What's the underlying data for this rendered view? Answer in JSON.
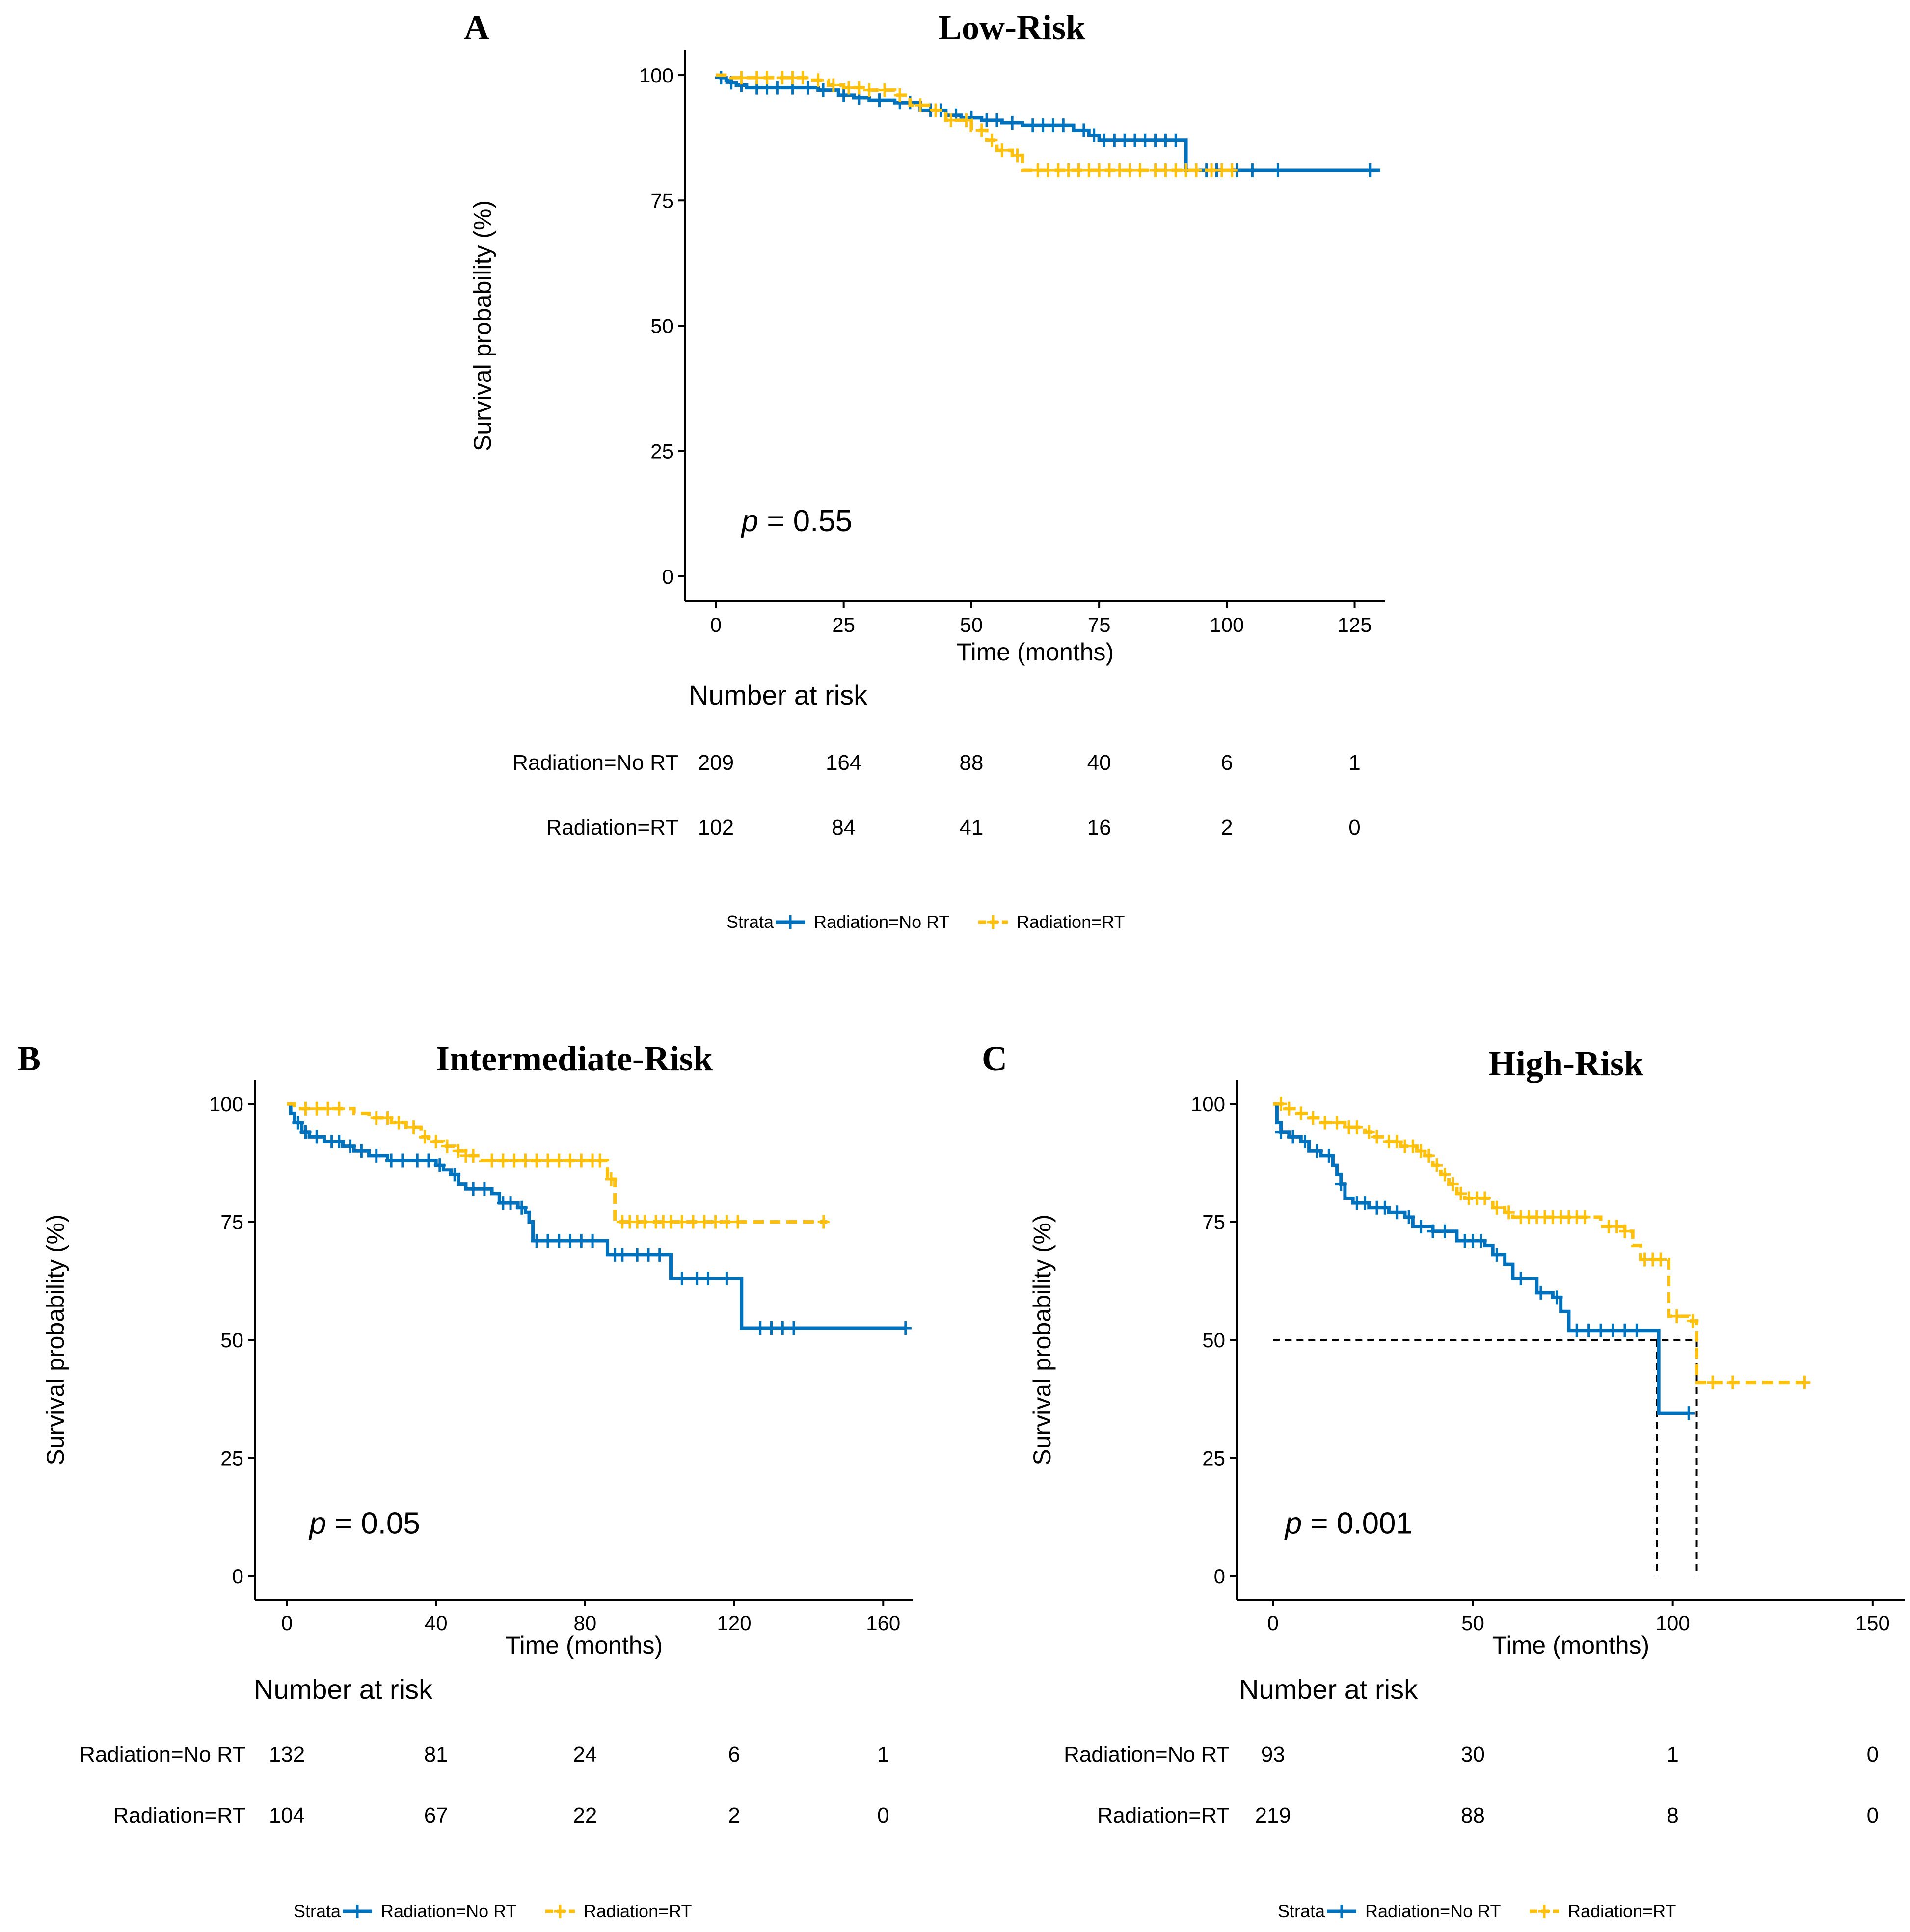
{
  "colors": {
    "no_rt": "#0072BD",
    "rt": "#FDC00F",
    "axis": "#000000",
    "median": "#000000"
  },
  "chart_data": [
    {
      "id": "A",
      "type": "line",
      "panel_label": "A",
      "title": "Low-Risk",
      "ylabel": "Survival probability (%)",
      "xlabel": "Time (months)",
      "xlim": [
        -6,
        131
      ],
      "ylim": [
        -5,
        105
      ],
      "xticks": [
        "0",
        "25",
        "50",
        "75",
        "100",
        "125"
      ],
      "xtick_values": [
        0,
        25,
        50,
        75,
        100,
        125
      ],
      "yticks": [
        "0",
        "25",
        "50",
        "75",
        "100"
      ],
      "ytick_values": [
        0,
        25,
        50,
        75,
        100
      ],
      "pvalue_label": "p",
      "pvalue_text": " = 0.55",
      "pvalue_pos": [
        5,
        9
      ],
      "median_lines": [],
      "series": [
        {
          "name": "Radiation=No RT",
          "key": "no_rt",
          "dashed": false,
          "steps": [
            [
              0,
              100
            ],
            [
              1,
              99.5
            ],
            [
              2,
              99
            ],
            [
              3,
              98.5
            ],
            [
              4,
              98
            ],
            [
              6,
              97.5
            ],
            [
              20,
              97
            ],
            [
              24,
              96
            ],
            [
              27,
              95.5
            ],
            [
              30,
              95
            ],
            [
              35,
              94.5
            ],
            [
              40,
              93
            ],
            [
              45,
              92
            ],
            [
              48,
              91.5
            ],
            [
              52,
              91
            ],
            [
              56,
              90.5
            ],
            [
              60,
              90
            ],
            [
              70,
              89
            ],
            [
              73,
              88
            ],
            [
              75,
              87
            ],
            [
              85,
              87
            ],
            [
              92,
              81
            ],
            [
              130,
              81
            ]
          ],
          "end": 130,
          "censor": [
            1,
            3,
            5,
            8,
            10,
            12,
            15,
            18,
            21,
            25,
            28,
            32,
            36,
            38,
            42,
            44,
            47,
            50,
            53,
            55,
            58,
            62,
            64,
            66,
            68,
            72,
            74,
            76,
            78,
            80,
            82,
            84,
            86,
            88,
            90,
            94,
            96,
            98,
            102,
            105,
            110,
            128
          ]
        },
        {
          "name": "Radiation=RT",
          "key": "rt",
          "dashed": true,
          "steps": [
            [
              0,
              100
            ],
            [
              3,
              99.5
            ],
            [
              18,
              99
            ],
            [
              22,
              98
            ],
            [
              25,
              97.5
            ],
            [
              30,
              97
            ],
            [
              35,
              96
            ],
            [
              38,
              94
            ],
            [
              42,
              93
            ],
            [
              45,
              91
            ],
            [
              50,
              89
            ],
            [
              53,
              87
            ],
            [
              55,
              85
            ],
            [
              58,
              84
            ],
            [
              60,
              81
            ],
            [
              102,
              81
            ]
          ],
          "end": 102,
          "censor": [
            5,
            8,
            10,
            13,
            15,
            17,
            20,
            23,
            26,
            28,
            30,
            33,
            36,
            40,
            43,
            46,
            49,
            52,
            54,
            56,
            59,
            63,
            65,
            67,
            69,
            71,
            73,
            75,
            77,
            79,
            81,
            83,
            86,
            88,
            90,
            92,
            94,
            97,
            99,
            101
          ]
        }
      ],
      "risk_table": {
        "title": "Number at risk",
        "rows": [
          {
            "label": "Radiation=No RT",
            "values": [
              "209",
              "164",
              "88",
              "40",
              "6",
              "1"
            ]
          },
          {
            "label": "Radiation=RT",
            "values": [
              "102",
              "84",
              "41",
              "16",
              "2",
              "0"
            ]
          }
        ]
      },
      "legend": {
        "title": "Strata",
        "items": [
          "Radiation=No RT",
          "Radiation=RT"
        ],
        "position": "bottom"
      }
    },
    {
      "id": "B",
      "type": "line",
      "panel_label": "B",
      "title": "Intermediate-Risk",
      "ylabel": "Survival probability (%)",
      "xlabel": "Time (months)",
      "xlim": [
        -8.5,
        168
      ],
      "ylim": [
        -5,
        105
      ],
      "xticks": [
        "0",
        "40",
        "80",
        "120",
        "160"
      ],
      "xtick_values": [
        0,
        40,
        80,
        120,
        160
      ],
      "yticks": [
        "0",
        "25",
        "50",
        "75",
        "100"
      ],
      "ytick_values": [
        0,
        25,
        50,
        75,
        100
      ],
      "pvalue_label": "p",
      "pvalue_text": " = 0.05",
      "pvalue_pos": [
        6,
        9
      ],
      "median_lines": [],
      "series": [
        {
          "name": "Radiation=No RT",
          "key": "no_rt",
          "dashed": false,
          "steps": [
            [
              0,
              100
            ],
            [
              1,
              98
            ],
            [
              2,
              96
            ],
            [
              4,
              94
            ],
            [
              6,
              93
            ],
            [
              10,
              92
            ],
            [
              15,
              91
            ],
            [
              18,
              90
            ],
            [
              22,
              89
            ],
            [
              27,
              88
            ],
            [
              40,
              87
            ],
            [
              42,
              86
            ],
            [
              44,
              85
            ],
            [
              46,
              83
            ],
            [
              48,
              82
            ],
            [
              55,
              81
            ],
            [
              57,
              79
            ],
            [
              62,
              78
            ],
            [
              64,
              77
            ],
            [
              65,
              75
            ],
            [
              66,
              71
            ],
            [
              85,
              71
            ],
            [
              86,
              68
            ],
            [
              102,
              68
            ],
            [
              103,
              63
            ],
            [
              121,
              63
            ],
            [
              122,
              52.5
            ],
            [
              166,
              52.5
            ]
          ],
          "end": 166,
          "censor": [
            3,
            5,
            8,
            12,
            14,
            17,
            20,
            24,
            28,
            31,
            35,
            38,
            41,
            45,
            50,
            53,
            58,
            60,
            63,
            67,
            70,
            73,
            76,
            79,
            82,
            88,
            90,
            94,
            97,
            100,
            106,
            110,
            113,
            118,
            127,
            130,
            133,
            136,
            166
          ]
        },
        {
          "name": "Radiation=RT",
          "key": "rt",
          "dashed": true,
          "steps": [
            [
              0,
              100
            ],
            [
              2,
              99
            ],
            [
              18,
              98
            ],
            [
              22,
              97
            ],
            [
              28,
              96
            ],
            [
              32,
              95
            ],
            [
              36,
              93
            ],
            [
              38,
              92
            ],
            [
              42,
              91
            ],
            [
              45,
              90
            ],
            [
              48,
              89
            ],
            [
              52,
              88
            ],
            [
              85,
              88
            ],
            [
              86,
              84
            ],
            [
              88,
              75
            ],
            [
              145,
              75
            ]
          ],
          "end": 145,
          "censor": [
            5,
            8,
            11,
            14,
            24,
            27,
            30,
            34,
            37,
            40,
            43,
            46,
            48,
            50,
            55,
            58,
            61,
            64,
            67,
            70,
            73,
            76,
            79,
            82,
            84,
            87,
            90,
            92,
            94,
            96,
            99,
            101,
            103,
            106,
            109,
            112,
            115,
            118,
            121,
            144
          ]
        }
      ],
      "risk_table": {
        "title": "Number at risk",
        "rows": [
          {
            "label": "Radiation=No RT",
            "values": [
              "132",
              "81",
              "24",
              "6",
              "1"
            ]
          },
          {
            "label": "Radiation=RT",
            "values": [
              "104",
              "67",
              "22",
              "2",
              "0"
            ]
          }
        ]
      },
      "legend": {
        "title": "Strata",
        "items": [
          "Radiation=No RT",
          "Radiation=RT"
        ],
        "position": "bottom"
      }
    },
    {
      "id": "C",
      "type": "line",
      "panel_label": "C",
      "title": "High-Risk",
      "ylabel": "Survival probability (%)",
      "xlabel": "Time (months)",
      "xlim": [
        -9,
        158
      ],
      "ylim": [
        -5,
        105
      ],
      "xticks": [
        "0",
        "50",
        "100",
        "150"
      ],
      "xtick_values": [
        0,
        50,
        100,
        150
      ],
      "yticks": [
        "0",
        "25",
        "50",
        "75",
        "100"
      ],
      "ytick_values": [
        0,
        25,
        50,
        75,
        100
      ],
      "pvalue_label": "p",
      "pvalue_text": " = 0.001",
      "pvalue_pos": [
        3,
        9
      ],
      "median_lines": [
        {
          "from": [
            0,
            50
          ],
          "to": [
            106,
            50
          ]
        },
        {
          "from": [
            96,
            50
          ],
          "to": [
            96,
            0
          ]
        },
        {
          "from": [
            106,
            50
          ],
          "to": [
            106,
            0
          ]
        }
      ],
      "series": [
        {
          "name": "Radiation=No RT",
          "key": "no_rt",
          "dashed": false,
          "steps": [
            [
              0,
              100
            ],
            [
              1,
              96
            ],
            [
              2,
              94
            ],
            [
              4,
              93
            ],
            [
              7,
              92
            ],
            [
              9,
              90
            ],
            [
              12,
              89
            ],
            [
              15,
              87
            ],
            [
              16,
              85
            ],
            [
              17,
              83
            ],
            [
              18,
              80
            ],
            [
              20,
              79
            ],
            [
              24,
              78
            ],
            [
              29,
              77
            ],
            [
              33,
              76
            ],
            [
              35,
              74
            ],
            [
              40,
              73
            ],
            [
              46,
              71
            ],
            [
              53,
              70
            ],
            [
              55,
              68
            ],
            [
              58,
              66
            ],
            [
              60,
              63
            ],
            [
              65,
              63
            ],
            [
              66,
              60
            ],
            [
              70,
              59
            ],
            [
              72,
              56
            ],
            [
              74,
              52
            ],
            [
              96,
              52
            ],
            [
              96.5,
              34.5
            ],
            [
              104,
              34.5
            ]
          ],
          "end": 104,
          "censor": [
            2,
            5,
            8,
            11,
            14,
            17,
            21,
            23,
            26,
            28,
            31,
            34,
            37,
            40,
            43,
            48,
            50,
            52,
            56,
            62,
            67,
            71,
            76,
            79,
            82,
            85,
            88,
            91,
            104
          ]
        },
        {
          "name": "Radiation=RT",
          "key": "rt",
          "dashed": true,
          "steps": [
            [
              0,
              100
            ],
            [
              3,
              99
            ],
            [
              6,
              98
            ],
            [
              9,
              97
            ],
            [
              12,
              96
            ],
            [
              18,
              95
            ],
            [
              23,
              94
            ],
            [
              25,
              93
            ],
            [
              28,
              92
            ],
            [
              32,
              91
            ],
            [
              36,
              90
            ],
            [
              38,
              89
            ],
            [
              40,
              87
            ],
            [
              42,
              85
            ],
            [
              44,
              83
            ],
            [
              46,
              81
            ],
            [
              48,
              80
            ],
            [
              55,
              78
            ],
            [
              58,
              77
            ],
            [
              60,
              76
            ],
            [
              80,
              76
            ],
            [
              82,
              74
            ],
            [
              88,
              73
            ],
            [
              90,
              70
            ],
            [
              92,
              67
            ],
            [
              98,
              67
            ],
            [
              99,
              55
            ],
            [
              104,
              54
            ],
            [
              106,
              41
            ],
            [
              134,
              41
            ]
          ],
          "end": 134,
          "censor": [
            2,
            4,
            7,
            10,
            13,
            16,
            19,
            21,
            24,
            26,
            29,
            31,
            33,
            35,
            37,
            39,
            41,
            43,
            45,
            47,
            49,
            51,
            53,
            56,
            59,
            62,
            64,
            66,
            68,
            70,
            72,
            74,
            76,
            78,
            84,
            86,
            88,
            93,
            95,
            97,
            101,
            105,
            110,
            115,
            133
          ]
        }
      ],
      "risk_table": {
        "title": "Number at risk",
        "rows": [
          {
            "label": "Radiation=No RT",
            "values": [
              "93",
              "30",
              "1",
              "0"
            ]
          },
          {
            "label": "Radiation=RT",
            "values": [
              "219",
              "88",
              "8",
              "0"
            ]
          }
        ]
      },
      "legend": {
        "title": "Strata",
        "items": [
          "Radiation=No RT",
          "Radiation=RT"
        ],
        "position": "bottom"
      }
    }
  ]
}
